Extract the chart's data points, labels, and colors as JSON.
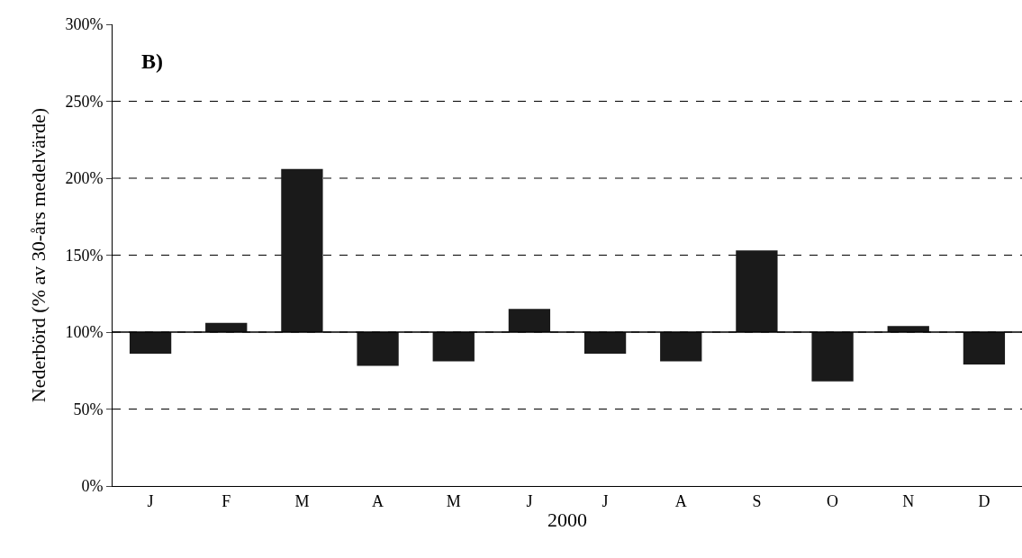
{
  "chart_data": {
    "type": "bar",
    "ylabel": "Nederbörd (% av 30-års medelvärde)",
    "xlabel": "2000",
    "annotations": [
      "B)"
    ],
    "categories": [
      "J",
      "F",
      "M",
      "A",
      "M",
      "J",
      "J",
      "A",
      "S",
      "O",
      "N",
      "D"
    ],
    "base": [
      100,
      100,
      100,
      100,
      100,
      100,
      100,
      100,
      100,
      100,
      100,
      100
    ],
    "values": [
      -14,
      6,
      106,
      -22,
      -19,
      15,
      -14,
      -19,
      53,
      -32,
      4,
      -21
    ],
    "color": "#1a1a1a",
    "ylim": [
      0,
      300
    ],
    "yticks": [
      {
        "value": 0,
        "label": "0%"
      },
      {
        "value": 50,
        "label": "50%"
      },
      {
        "value": 100,
        "label": "100%"
      },
      {
        "value": 150,
        "label": "150%"
      },
      {
        "value": 200,
        "label": "200%"
      },
      {
        "value": 250,
        "label": "250%"
      },
      {
        "value": 300,
        "label": "300%"
      }
    ],
    "ref_lines": [
      {
        "axis": "y",
        "value": 100,
        "color": "#000000",
        "line_style": "solid"
      }
    ],
    "grid": "y"
  }
}
